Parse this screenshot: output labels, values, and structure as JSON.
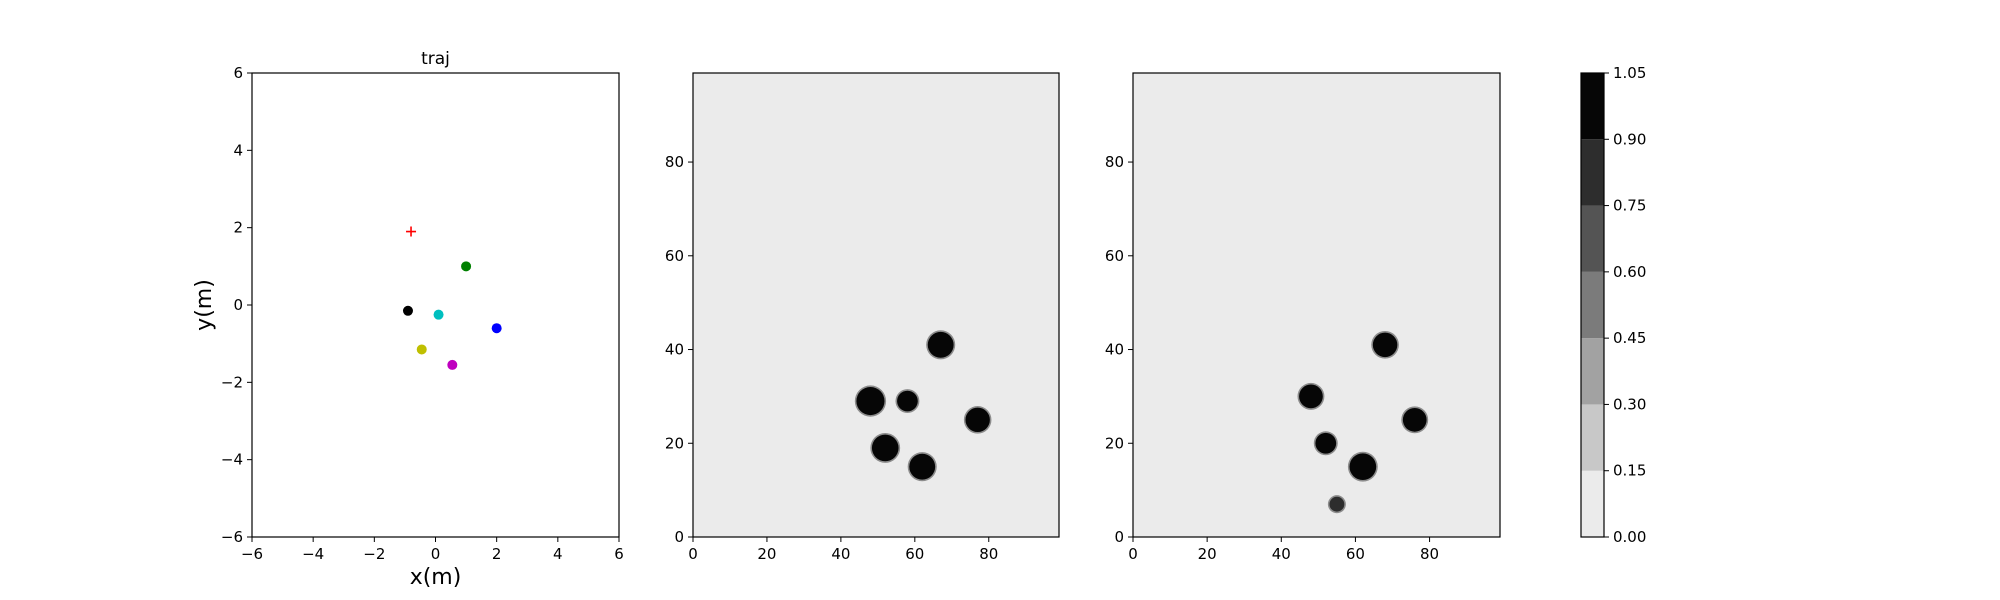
{
  "chart_data": [
    {
      "type": "scatter",
      "title": "traj",
      "xlabel": "x(m)",
      "ylabel": "y(m)",
      "xlim": [
        -6,
        6
      ],
      "ylim": [
        -6,
        6
      ],
      "xticks": [
        "−6",
        "−4",
        "−2",
        "0",
        "2",
        "4",
        "6"
      ],
      "yticks": [
        "−6",
        "−4",
        "−2",
        "0",
        "2",
        "4",
        "6"
      ],
      "grid": false,
      "points": [
        {
          "x": -0.8,
          "y": 1.9,
          "color": "#ff0000",
          "marker": "plus"
        },
        {
          "x": 1.0,
          "y": 1.0,
          "color": "#008000",
          "marker": "circle"
        },
        {
          "x": -0.9,
          "y": -0.15,
          "color": "#000000",
          "marker": "circle"
        },
        {
          "x": 0.1,
          "y": -0.25,
          "color": "#00bfbf",
          "marker": "circle"
        },
        {
          "x": 2.0,
          "y": -0.6,
          "color": "#0000ff",
          "marker": "circle"
        },
        {
          "x": -0.45,
          "y": -1.15,
          "color": "#bfbf00",
          "marker": "circle"
        },
        {
          "x": 0.55,
          "y": -1.55,
          "color": "#bf00bf",
          "marker": "circle"
        }
      ]
    },
    {
      "type": "heatmap",
      "title": "",
      "xlabel": "",
      "ylabel": "",
      "xlim": [
        0,
        99
      ],
      "ylim": [
        0,
        99
      ],
      "xticks": [
        "0",
        "20",
        "40",
        "60",
        "80"
      ],
      "yticks": [
        "0",
        "20",
        "40",
        "60",
        "80"
      ],
      "background_value": 0.1,
      "blobs": [
        {
          "x": 67,
          "y": 41,
          "r": 3.5,
          "value": 1.0
        },
        {
          "x": 48,
          "y": 29,
          "r": 3.8,
          "value": 1.0
        },
        {
          "x": 58,
          "y": 29,
          "r": 2.8,
          "value": 1.0
        },
        {
          "x": 77,
          "y": 25,
          "r": 3.3,
          "value": 1.0
        },
        {
          "x": 52,
          "y": 19,
          "r": 3.6,
          "value": 1.0
        },
        {
          "x": 62,
          "y": 15,
          "r": 3.5,
          "value": 1.0
        }
      ]
    },
    {
      "type": "heatmap",
      "title": "",
      "xlabel": "",
      "ylabel": "",
      "xlim": [
        0,
        99
      ],
      "ylim": [
        0,
        99
      ],
      "xticks": [
        "0",
        "20",
        "40",
        "60",
        "80"
      ],
      "yticks": [
        "0",
        "20",
        "40",
        "60",
        "80"
      ],
      "background_value": 0.1,
      "blobs": [
        {
          "x": 68,
          "y": 41,
          "r": 3.3,
          "value": 1.0
        },
        {
          "x": 48,
          "y": 30,
          "r": 3.2,
          "value": 1.0
        },
        {
          "x": 76,
          "y": 25,
          "r": 3.2,
          "value": 1.0
        },
        {
          "x": 52,
          "y": 20,
          "r": 2.8,
          "value": 1.0
        },
        {
          "x": 62,
          "y": 15,
          "r": 3.6,
          "value": 1.0
        },
        {
          "x": 55,
          "y": 7,
          "r": 2.0,
          "value": 0.75
        }
      ]
    }
  ],
  "colorbar": {
    "ticks": [
      "0.00",
      "0.15",
      "0.30",
      "0.45",
      "0.60",
      "0.75",
      "0.90",
      "1.05"
    ],
    "levels": [
      0.0,
      0.15,
      0.3,
      0.45,
      0.6,
      0.75,
      0.9,
      1.05
    ],
    "colors": [
      "#ebebeb",
      "#c8c8c8",
      "#a2a2a2",
      "#7b7b7b",
      "#545454",
      "#2d2d2d",
      "#060606"
    ]
  }
}
